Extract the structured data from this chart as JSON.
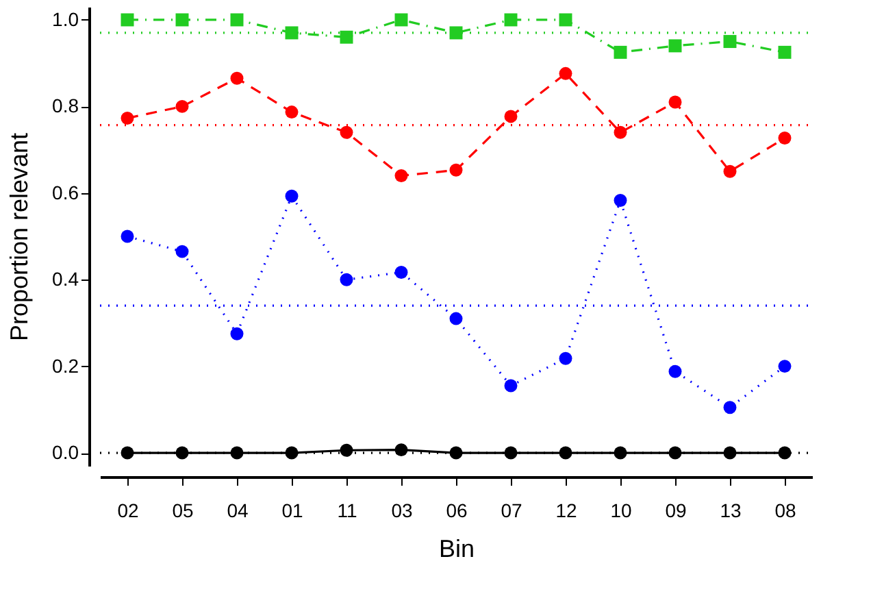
{
  "chart_data": {
    "type": "line",
    "xlabel": "Bin",
    "ylabel": "Proportion relevant",
    "categories": [
      "02",
      "05",
      "04",
      "01",
      "11",
      "03",
      "06",
      "07",
      "12",
      "10",
      "09",
      "13",
      "08"
    ],
    "ylim": [
      -0.03,
      1.03
    ],
    "yticks": [
      {
        "value": 0,
        "label": "0.0"
      },
      0.2,
      0.4,
      0.6,
      0.8,
      {
        "value": 1,
        "label": "1.0"
      }
    ],
    "grid": false,
    "series": [
      {
        "color": "#22cc22",
        "marker": "square",
        "line_style": "dashdot",
        "values": [
          1.0,
          1.0,
          1.0,
          0.97,
          0.96,
          1.0,
          0.97,
          1.0,
          1.0,
          0.925,
          0.94,
          0.95,
          0.925
        ]
      },
      {
        "color": "#ff0000",
        "marker": "circle",
        "line_style": "dashed",
        "values": [
          0.773,
          0.8,
          0.865,
          0.787,
          0.74,
          0.64,
          0.653,
          0.777,
          0.876,
          0.74,
          0.81,
          0.65,
          0.727
        ]
      },
      {
        "color": "#0000ff",
        "marker": "circle",
        "line_style": "dotted",
        "values": [
          0.5,
          0.465,
          0.275,
          0.593,
          0.4,
          0.417,
          0.31,
          0.155,
          0.218,
          0.583,
          0.188,
          0.105,
          0.2
        ]
      },
      {
        "color": "#000000",
        "marker": "circle",
        "line_style": "solid",
        "values": [
          0,
          0,
          0,
          0,
          0.006,
          0.007,
          0,
          0,
          0,
          0,
          0,
          0,
          0
        ]
      }
    ],
    "ref_lines": [
      {
        "axis": "y",
        "value": 0.97,
        "color": "#22cc22",
        "line_style": "dotted"
      },
      {
        "axis": "y",
        "value": 0.757,
        "color": "#ff0000",
        "line_style": "dotted"
      },
      {
        "axis": "y",
        "value": 0.34,
        "color": "#0000ff",
        "line_style": "dotted"
      },
      {
        "axis": "y",
        "value": 0,
        "color": "#000000",
        "line_style": "dotted"
      }
    ]
  }
}
